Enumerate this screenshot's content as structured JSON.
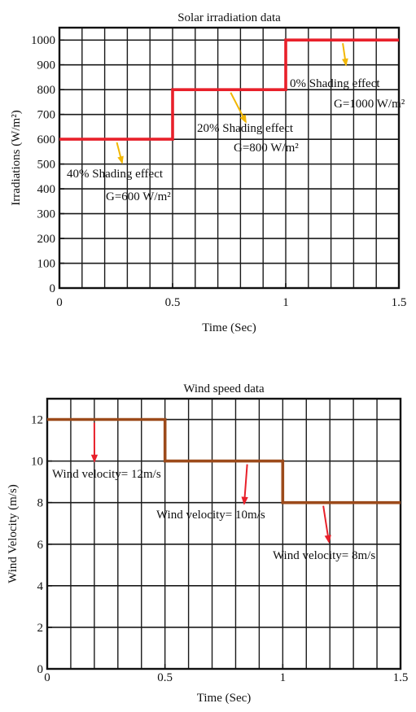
{
  "charts": {
    "solar": {
      "title": "Solar irradiation data",
      "xlabel": "Time (Sec)",
      "ylabel": "Irradiations (W/m²)"
    },
    "wind": {
      "title": "Wind speed data",
      "xlabel": "Time (Sec)",
      "ylabel": "Wind Velocity (m/s)"
    }
  },
  "chart_data": [
    {
      "type": "line",
      "title": "Solar irradiation data",
      "xlabel": "Time (Sec)",
      "ylabel": "Irradiations (W/m²)",
      "xlim": [
        0,
        1.5
      ],
      "ylim": [
        0,
        1050
      ],
      "xticks": [
        0,
        0.5,
        1,
        1.5
      ],
      "xtick_labels": [
        "0",
        "0.5",
        "1",
        "1.5"
      ],
      "yticks": [
        0,
        100,
        200,
        300,
        400,
        500,
        600,
        700,
        800,
        900,
        1000
      ],
      "ytick_labels": [
        "0",
        "100",
        "200",
        "300",
        "400",
        "500",
        "600",
        "700",
        "800",
        "900",
        "1000"
      ],
      "grid": true,
      "series": [
        {
          "color": "#e8202a",
          "step": true,
          "x": [
            0,
            0.5,
            0.5,
            1,
            1,
            1.5
          ],
          "y": [
            600,
            600,
            800,
            800,
            1000,
            1000
          ]
        }
      ],
      "annotations": [
        {
          "lines": [
            "0% Shading effect",
            "G=1000 W/m²"
          ],
          "arrow_to": [
            1.25,
            1000
          ]
        },
        {
          "lines": [
            "20% Shading effect",
            "G=800 W/m²"
          ],
          "arrow_to": [
            0.75,
            800
          ]
        },
        {
          "lines": [
            "40% Shading effect",
            "G=600 W/m²"
          ],
          "arrow_to": [
            0.25,
            600
          ]
        }
      ],
      "annotation_arrow_color": "#f2b705"
    },
    {
      "type": "line",
      "title": "Wind speed data",
      "xlabel": "Time (Sec)",
      "ylabel": "Wind Velocity (m/s)",
      "xlim": [
        0,
        1.5
      ],
      "ylim": [
        0,
        13
      ],
      "xticks": [
        0,
        0.5,
        1,
        1.5
      ],
      "xtick_labels": [
        "0",
        "0.5",
        "1",
        "1.5"
      ],
      "yticks": [
        0,
        2,
        4,
        6,
        8,
        10,
        12
      ],
      "ytick_labels": [
        "0",
        "2",
        "4",
        "6",
        "8",
        "10",
        "12"
      ],
      "grid": true,
      "series": [
        {
          "color": "#9c4a1a",
          "step": true,
          "x": [
            0,
            0.5,
            0.5,
            1,
            1,
            1.5
          ],
          "y": [
            12,
            12,
            10,
            10,
            8,
            8
          ]
        }
      ],
      "annotations": [
        {
          "lines": [
            "Wind velocity= 12m/s"
          ],
          "arrow_to": [
            0.2,
            12
          ]
        },
        {
          "lines": [
            "Wind velocity= 10m/s"
          ],
          "arrow_to": [
            0.85,
            10
          ]
        },
        {
          "lines": [
            "Wind velocity= 8m/s"
          ],
          "arrow_to": [
            1.17,
            8
          ]
        }
      ],
      "annotation_arrow_color": "#e8202a"
    }
  ]
}
